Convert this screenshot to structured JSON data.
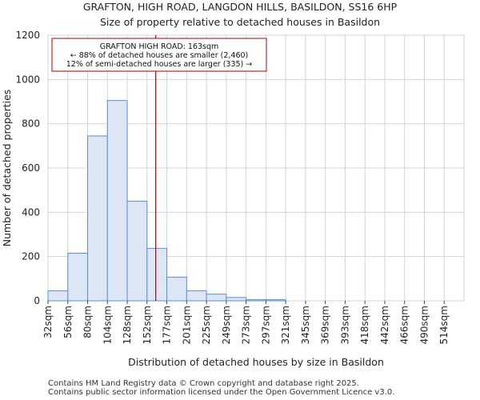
{
  "chart_data": {
    "type": "bar",
    "title_lines": [
      "GRAFTON, HIGH ROAD, LANGDON HILLS, BASILDON, SS16 6HP",
      "Size of property relative to detached houses in Basildon"
    ],
    "xlabel": "Distribution of detached houses by size in Basildon",
    "ylabel": "Number of detached properties",
    "ylim": [
      0,
      1200
    ],
    "yticks": [
      0,
      200,
      400,
      600,
      800,
      1000,
      1200
    ],
    "bin_edges": [
      32,
      56,
      80,
      104,
      128,
      152,
      177,
      201,
      225,
      249,
      273,
      297,
      321,
      345,
      369,
      393,
      418,
      442,
      466,
      490,
      514,
      538
    ],
    "categories": [
      "32sqm",
      "56sqm",
      "80sqm",
      "104sqm",
      "128sqm",
      "152sqm",
      "177sqm",
      "201sqm",
      "225sqm",
      "249sqm",
      "273sqm",
      "297sqm",
      "321sqm",
      "345sqm",
      "369sqm",
      "393sqm",
      "418sqm",
      "442sqm",
      "466sqm",
      "490sqm",
      "514sqm"
    ],
    "values": [
      45,
      215,
      745,
      905,
      450,
      237,
      107,
      45,
      30,
      15,
      5,
      5,
      0,
      0,
      0,
      0,
      0,
      0,
      0,
      0,
      0
    ],
    "bar_color": "#dce6f5",
    "bar_edge_color": "#5b8fd1",
    "marker": {
      "value": 163,
      "color": "#aa0000",
      "annotation_lines": [
        "GRAFTON HIGH ROAD: 163sqm",
        "← 88% of detached houses are smaller (2,460)",
        "12% of semi-detached houses are larger (335) →"
      ]
    },
    "footer_lines": [
      "Contains HM Land Registry data © Crown copyright and database right 2025.",
      "Contains public sector information licensed under the Open Government Licence v3.0."
    ]
  }
}
